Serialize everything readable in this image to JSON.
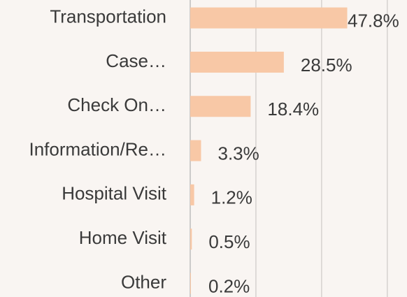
{
  "chart_data": {
    "type": "bar",
    "orientation": "horizontal",
    "categories": [
      "Transportation",
      "Case…",
      "Check On…",
      "Information/Re…",
      "Hospital Visit",
      "Home Visit",
      "Other"
    ],
    "values": [
      47.8,
      28.5,
      18.4,
      3.3,
      1.2,
      0.5,
      0.2
    ],
    "value_labels": [
      "47.8%",
      "28.5%",
      "18.4%",
      "3.3%",
      "1.2%",
      "0.5%",
      "0.2%"
    ],
    "color": "#f8c8a6",
    "xlim": [
      0,
      66
    ],
    "xticks": [
      0,
      20,
      40,
      60
    ],
    "grid": true
  }
}
